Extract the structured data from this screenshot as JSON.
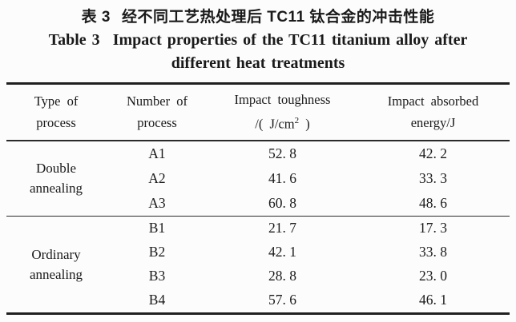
{
  "page": {
    "background": "#fcfcfc",
    "text_color": "#1a1a1a",
    "rule_color": "#1f1f1f"
  },
  "caption": {
    "zh_label": "表 3",
    "zh_text": "经不同工艺热处理后 TC11 钛合金的冲击性能",
    "en_label": "Table 3",
    "en_line1": "Impact properties of the TC11 titanium alloy after",
    "en_line2": "different heat treatments"
  },
  "table": {
    "headers": {
      "type": {
        "l1": "Type of",
        "l2": "process"
      },
      "number": {
        "l1": "Number of",
        "l2": "process"
      },
      "toughness": {
        "l1": "Impact toughness",
        "l2a": "/( J/cm",
        "l2sup": "2",
        "l2b": " )"
      },
      "energy": {
        "l1": "Impact absorbed",
        "l2": "energy/J"
      }
    },
    "groups": [
      {
        "type_l1": "Double",
        "type_l2": "annealing",
        "rows": [
          {
            "number": "A1",
            "toughness": "52. 8",
            "energy": "42. 2"
          },
          {
            "number": "A2",
            "toughness": "41. 6",
            "energy": "33. 3"
          },
          {
            "number": "A3",
            "toughness": "60. 8",
            "energy": "48. 6"
          }
        ]
      },
      {
        "type_l1": "Ordinary",
        "type_l2": "annealing",
        "rows": [
          {
            "number": "B1",
            "toughness": "21. 7",
            "energy": "17. 3"
          },
          {
            "number": "B2",
            "toughness": "42. 1",
            "energy": "33. 8"
          },
          {
            "number": "B3",
            "toughness": "28. 8",
            "energy": "23. 0"
          },
          {
            "number": "B4",
            "toughness": "57. 6",
            "energy": "46. 1"
          }
        ]
      }
    ]
  }
}
